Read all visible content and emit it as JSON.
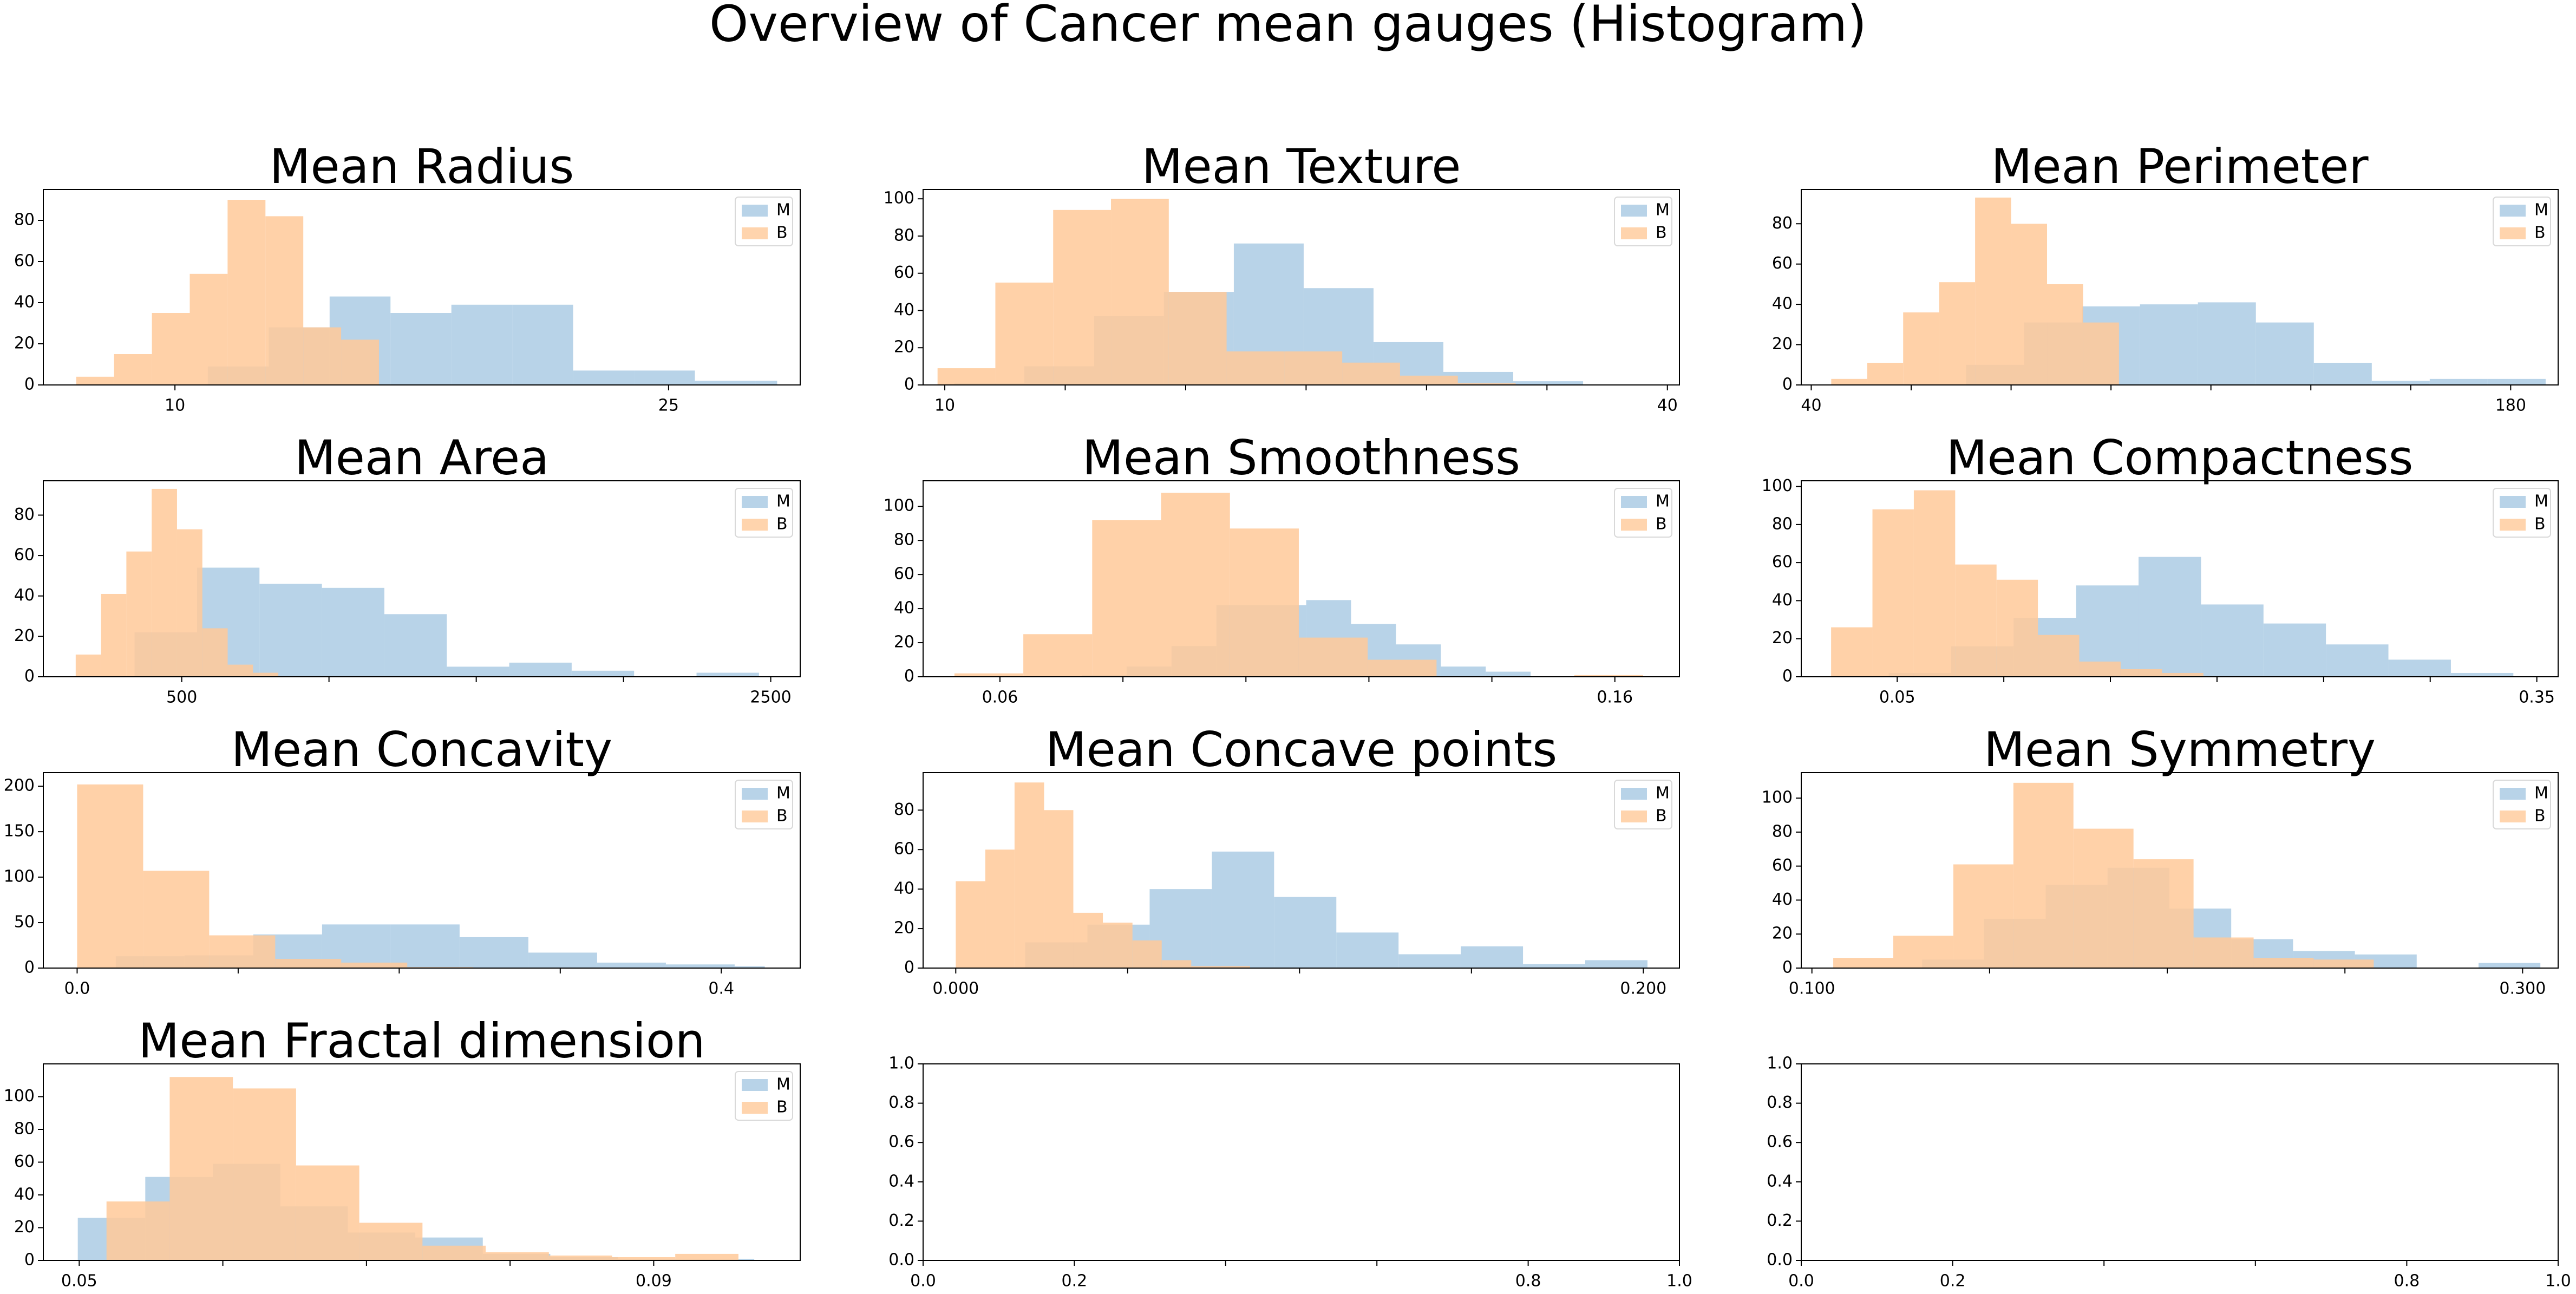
{
  "figure": {
    "title": "Overview of Cancer mean gauges (Histogram)"
  },
  "colors": {
    "M": "#a6c8e2",
    "B": "#ffc999",
    "overlap": "#c7b6a3",
    "axis": "#000000",
    "background": "#ffffff"
  },
  "chart_data": [
    {
      "type": "histogram",
      "title": "Mean Radius",
      "xlim": [
        6.0,
        29.0
      ],
      "ylim": [
        0,
        95
      ],
      "xticks": [
        {
          "v": 10,
          "label": "10"
        },
        {
          "v": 25,
          "label": "25"
        }
      ],
      "minor_xticks": [],
      "yticks": [
        0,
        20,
        40,
        60,
        80
      ],
      "legend": [
        "M",
        "B"
      ],
      "series": [
        {
          "name": "M",
          "edges": [
            11.0,
            12.85,
            14.7,
            16.55,
            18.4,
            20.25,
            22.1,
            23.95,
            25.8,
            27.65,
            28.3
          ],
          "counts": [
            9,
            28,
            43,
            35,
            39,
            39,
            7,
            7,
            2,
            2
          ]
        },
        {
          "name": "B",
          "edges": [
            7.0,
            8.15,
            9.3,
            10.45,
            11.6,
            12.75,
            13.9,
            15.05,
            16.2,
            17.35,
            18.5
          ],
          "counts": [
            4,
            15,
            35,
            54,
            90,
            82,
            28,
            22,
            0,
            0
          ]
        }
      ]
    },
    {
      "type": "histogram",
      "title": "Mean Texture",
      "xlim": [
        9.1,
        40.5
      ],
      "ylim": [
        0,
        105
      ],
      "xticks": [
        {
          "v": 10,
          "label": "10"
        },
        {
          "v": 40,
          "label": "40"
        }
      ],
      "minor_xticks": [
        15,
        20,
        25,
        30,
        35
      ],
      "yticks": [
        0,
        20,
        40,
        60,
        80,
        100
      ],
      "legend": [
        "M",
        "B"
      ],
      "series": [
        {
          "name": "M",
          "edges": [
            10.4,
            13.3,
            16.2,
            19.1,
            22.0,
            24.9,
            27.8,
            30.7,
            33.6,
            36.5,
            39.4
          ],
          "counts": [
            1,
            10,
            37,
            50,
            76,
            52,
            23,
            7,
            2,
            0
          ]
        },
        {
          "name": "B",
          "edges": [
            9.7,
            12.1,
            14.5,
            16.9,
            19.3,
            21.7,
            24.1,
            26.5,
            28.9,
            31.3,
            33.7
          ],
          "counts": [
            9,
            55,
            94,
            100,
            50,
            18,
            18,
            12,
            5,
            1
          ]
        }
      ]
    },
    {
      "type": "histogram",
      "title": "Mean Perimeter",
      "xlim": [
        38.0,
        189.5
      ],
      "ylim": [
        0,
        97
      ],
      "xticks": [
        {
          "v": 40,
          "label": "40"
        },
        {
          "v": 180,
          "label": "180"
        }
      ],
      "minor_xticks": [
        60,
        80,
        100,
        120,
        140,
        160
      ],
      "yticks": [
        0,
        20,
        40,
        60,
        80
      ],
      "legend": [
        "M",
        "B"
      ],
      "series": [
        {
          "name": "M",
          "edges": [
            71.0,
            82.6,
            94.2,
            105.8,
            117.4,
            129.0,
            140.6,
            152.2,
            163.8,
            175.4,
            187.0
          ],
          "counts": [
            10,
            31,
            39,
            40,
            41,
            31,
            11,
            2,
            3,
            3
          ]
        },
        {
          "name": "B",
          "edges": [
            44.0,
            51.2,
            58.4,
            65.6,
            72.8,
            80.0,
            87.2,
            94.4,
            101.6,
            108.8,
            116.0
          ],
          "counts": [
            3,
            11,
            36,
            51,
            93,
            80,
            50,
            31,
            0,
            0
          ]
        }
      ]
    },
    {
      "type": "histogram",
      "title": "Mean Area",
      "xlim": [
        30.0,
        2600.0
      ],
      "ylim": [
        0,
        97
      ],
      "xticks": [
        {
          "v": 500,
          "label": "500"
        },
        {
          "v": 2500,
          "label": "2500"
        }
      ],
      "minor_xticks": [
        1000,
        1500,
        2000
      ],
      "yticks": [
        0,
        20,
        40,
        60,
        80
      ],
      "legend": [
        "M",
        "B"
      ],
      "series": [
        {
          "name": "M",
          "edges": [
            340,
            552,
            764,
            976,
            1188,
            1400,
            1612,
            1824,
            2036,
            2248,
            2460
          ],
          "counts": [
            22,
            54,
            46,
            44,
            31,
            5,
            7,
            3,
            0,
            2
          ]
        },
        {
          "name": "B",
          "edges": [
            140,
            226,
            312,
            398,
            484,
            570,
            656,
            742,
            828,
            914,
            1000
          ],
          "counts": [
            11,
            41,
            62,
            93,
            73,
            24,
            6,
            2,
            0,
            0
          ]
        }
      ]
    },
    {
      "type": "histogram",
      "title": "Mean Smoothness",
      "xlim": [
        0.0475,
        0.1705
      ],
      "ylim": [
        0,
        115
      ],
      "xticks": [
        {
          "v": 0.06,
          "label": "0.06"
        },
        {
          "v": 0.16,
          "label": "0.16"
        }
      ],
      "minor_xticks": [
        0.08,
        0.1,
        0.12,
        0.14
      ],
      "yticks": [
        0,
        20,
        40,
        60,
        80,
        100
      ],
      "legend": [
        "M",
        "B"
      ],
      "series": [
        {
          "name": "M",
          "edges": [
            0.0733,
            0.0806,
            0.0879,
            0.0952,
            0.1025,
            0.1098,
            0.1171,
            0.1244,
            0.1317,
            0.139,
            0.1463
          ],
          "counts": [
            1,
            6,
            18,
            42,
            42,
            45,
            31,
            19,
            6,
            3
          ]
        },
        {
          "name": "B",
          "edges": [
            0.0526,
            0.0638,
            0.075,
            0.0862,
            0.0974,
            0.1086,
            0.1198,
            0.131,
            0.1422,
            0.1534,
            0.1646
          ],
          "counts": [
            2,
            25,
            92,
            108,
            87,
            23,
            10,
            0,
            0,
            1
          ]
        }
      ]
    },
    {
      "type": "histogram",
      "title": "Mean Compactness",
      "xlim": [
        0.005,
        0.36
      ],
      "ylim": [
        0,
        103
      ],
      "xticks": [
        {
          "v": 0.05,
          "label": "0.05"
        },
        {
          "v": 0.35,
          "label": "0.35"
        }
      ],
      "minor_xticks": [
        0.1,
        0.15,
        0.2,
        0.25,
        0.3
      ],
      "yticks": [
        0,
        20,
        40,
        60,
        80,
        100
      ],
      "legend": [
        "M",
        "B"
      ],
      "series": [
        {
          "name": "M",
          "edges": [
            0.046,
            0.0753,
            0.1046,
            0.1339,
            0.1632,
            0.1925,
            0.2218,
            0.2511,
            0.2804,
            0.3097,
            0.339
          ],
          "counts": [
            2,
            16,
            31,
            48,
            63,
            38,
            28,
            17,
            9,
            2
          ]
        },
        {
          "name": "B",
          "edges": [
            0.019,
            0.0384,
            0.0578,
            0.0772,
            0.0966,
            0.116,
            0.1354,
            0.1548,
            0.1742,
            0.1936,
            0.213
          ],
          "counts": [
            26,
            88,
            98,
            59,
            51,
            22,
            8,
            4,
            2,
            0
          ]
        }
      ]
    },
    {
      "type": "histogram",
      "title": "Mean Concavity",
      "xlim": [
        -0.021,
        0.449
      ],
      "ylim": [
        0,
        215
      ],
      "xticks": [
        {
          "v": 0.0,
          "label": "0.0"
        },
        {
          "v": 0.4,
          "label": "0.4"
        }
      ],
      "minor_xticks": [
        0.1,
        0.2,
        0.3
      ],
      "yticks": [
        0,
        50,
        100,
        150,
        200
      ],
      "legend": [
        "M",
        "B"
      ],
      "series": [
        {
          "name": "M",
          "edges": [
            0.024,
            0.0667,
            0.1094,
            0.1521,
            0.1948,
            0.2375,
            0.2802,
            0.3229,
            0.3656,
            0.4083,
            0.427
          ],
          "counts": [
            13,
            14,
            37,
            48,
            48,
            34,
            17,
            6,
            4,
            2
          ]
        },
        {
          "name": "B",
          "edges": [
            0.0,
            0.041,
            0.082,
            0.123,
            0.164,
            0.205,
            0.246,
            0.287,
            0.328,
            0.369,
            0.41
          ],
          "counts": [
            202,
            107,
            36,
            10,
            6,
            1,
            0,
            0,
            0,
            0
          ]
        }
      ]
    },
    {
      "type": "histogram",
      "title": "Mean Concave points",
      "xlim": [
        -0.0095,
        0.2105
      ],
      "ylim": [
        0,
        99
      ],
      "xticks": [
        {
          "v": 0.0,
          "label": "0.000"
        },
        {
          "v": 0.2,
          "label": "0.200"
        }
      ],
      "minor_xticks": [
        0.05,
        0.1,
        0.15
      ],
      "yticks": [
        0,
        20,
        40,
        60,
        80
      ],
      "legend": [
        "M",
        "B"
      ],
      "series": [
        {
          "name": "M",
          "edges": [
            0.0202,
            0.0383,
            0.0564,
            0.0745,
            0.0926,
            0.1107,
            0.1288,
            0.1469,
            0.165,
            0.1831,
            0.2012
          ],
          "counts": [
            13,
            22,
            40,
            59,
            36,
            18,
            7,
            11,
            2,
            4
          ]
        },
        {
          "name": "B",
          "edges": [
            0.0,
            0.0086,
            0.0171,
            0.0257,
            0.0342,
            0.0428,
            0.0514,
            0.0599,
            0.0685,
            0.077,
            0.0856
          ],
          "counts": [
            44,
            60,
            94,
            80,
            28,
            23,
            14,
            4,
            1,
            1
          ]
        }
      ]
    },
    {
      "type": "histogram",
      "title": "Mean Symmetry",
      "xlim": [
        0.097,
        0.31
      ],
      "ylim": [
        0,
        115
      ],
      "xticks": [
        {
          "v": 0.1,
          "label": "0.100"
        },
        {
          "v": 0.3,
          "label": "0.300"
        }
      ],
      "minor_xticks": [
        0.15,
        0.2,
        0.25
      ],
      "yticks": [
        0,
        20,
        40,
        60,
        80,
        100
      ],
      "legend": [
        "M",
        "B"
      ],
      "series": [
        {
          "name": "M",
          "edges": [
            0.131,
            0.1484,
            0.1658,
            0.1832,
            0.2006,
            0.218,
            0.2354,
            0.2528,
            0.2702,
            0.2876,
            0.305
          ],
          "counts": [
            5,
            29,
            49,
            59,
            35,
            17,
            10,
            8,
            0,
            3
          ]
        },
        {
          "name": "B",
          "edges": [
            0.106,
            0.1229,
            0.1398,
            0.1567,
            0.1736,
            0.1905,
            0.2074,
            0.2243,
            0.2412,
            0.2581,
            0.275
          ],
          "counts": [
            6,
            19,
            61,
            109,
            82,
            64,
            18,
            6,
            5,
            0
          ]
        }
      ]
    },
    {
      "type": "histogram",
      "title": "Mean Fractal dimension",
      "xlim": [
        0.0475,
        0.1002
      ],
      "ylim": [
        0,
        120
      ],
      "xticks": [
        {
          "v": 0.05,
          "label": "0.05"
        },
        {
          "v": 0.09,
          "label": "0.09"
        }
      ],
      "minor_xticks": [
        0.06,
        0.07,
        0.08
      ],
      "yticks": [
        0,
        20,
        40,
        60,
        80,
        100
      ],
      "legend": [
        "M",
        "B"
      ],
      "series": [
        {
          "name": "M",
          "edges": [
            0.0499,
            0.0546,
            0.0593,
            0.064,
            0.0687,
            0.0734,
            0.0781,
            0.0828,
            0.0875,
            0.0922,
            0.097
          ],
          "counts": [
            26,
            51,
            59,
            33,
            17,
            14,
            4,
            2,
            1,
            1
          ]
        },
        {
          "name": "B",
          "edges": [
            0.0519,
            0.0563,
            0.0607,
            0.0651,
            0.0695,
            0.0739,
            0.0783,
            0.0827,
            0.0871,
            0.0915,
            0.0959
          ],
          "counts": [
            36,
            112,
            105,
            58,
            23,
            9,
            5,
            3,
            2,
            4
          ]
        }
      ]
    },
    {
      "type": "empty",
      "title": "",
      "xlim": [
        0,
        1
      ],
      "ylim": [
        0,
        1
      ],
      "xticks": [
        {
          "v": 0.0,
          "label": "0.0"
        },
        {
          "v": 0.2,
          "label": "0.2"
        },
        {
          "v": 0.8,
          "label": "0.8"
        },
        {
          "v": 1.0,
          "label": "1.0"
        }
      ],
      "minor_xticks": [
        0.4,
        0.6
      ],
      "yticks": [
        0.0,
        0.2,
        0.4,
        0.6,
        0.8,
        1.0
      ],
      "legend": [],
      "series": []
    },
    {
      "type": "empty",
      "title": "",
      "xlim": [
        0,
        1
      ],
      "ylim": [
        0,
        1
      ],
      "xticks": [
        {
          "v": 0.0,
          "label": "0.0"
        },
        {
          "v": 0.2,
          "label": "0.2"
        },
        {
          "v": 0.8,
          "label": "0.8"
        },
        {
          "v": 1.0,
          "label": "1.0"
        }
      ],
      "minor_xticks": [
        0.4,
        0.6
      ],
      "yticks": [
        0.0,
        0.2,
        0.4,
        0.6,
        0.8,
        1.0
      ],
      "legend": [],
      "series": []
    }
  ]
}
